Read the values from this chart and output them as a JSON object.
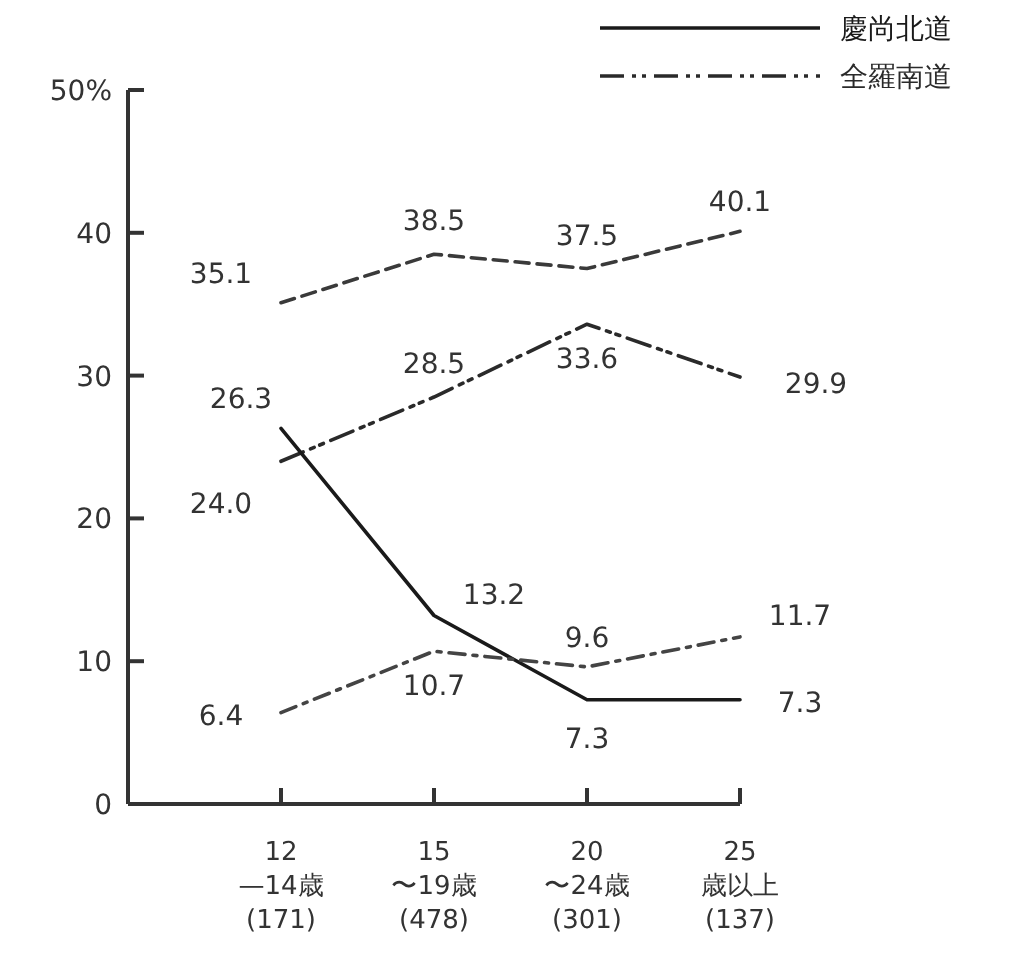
{
  "chart_data": {
    "type": "line",
    "categories": [
      "12\n—14歳\n(171)",
      "15\n〜19歳\n(478)",
      "20\n〜24歳\n(301)",
      "25\n歳以上\n(137)"
    ],
    "ylim": [
      0,
      50
    ],
    "yticks": [
      0,
      10,
      20,
      30,
      40,
      {
        "value": 50,
        "label": "50%"
      }
    ],
    "legend": "top right",
    "series": [
      {
        "color": "#3a3a3a",
        "line_style": "dashed",
        "values": [
          35.1,
          38.5,
          37.5,
          40.1
        ],
        "value_labels": [
          "35.1",
          "38.5",
          "37.5",
          "40.1"
        ]
      },
      {
        "name": "全羅南道",
        "color": "#2a2a2a",
        "line_style": "dashdotdot",
        "values": [
          24.0,
          28.5,
          33.6,
          29.9
        ],
        "value_labels": [
          "24.0",
          "28.5",
          "33.6",
          "29.9"
        ]
      },
      {
        "name": "慶尚北道",
        "color": "#1a1a1a",
        "line_style": "solid",
        "values": [
          26.3,
          13.2,
          7.3,
          7.3
        ],
        "value_labels": [
          "26.3",
          "13.2",
          "7.3",
          "7.3"
        ]
      },
      {
        "color": "#444444",
        "line_style": "dashdot",
        "values": [
          6.4,
          10.7,
          9.6,
          11.7
        ],
        "value_labels": [
          "6.4",
          "10.7",
          "9.6",
          "11.7"
        ]
      }
    ]
  }
}
